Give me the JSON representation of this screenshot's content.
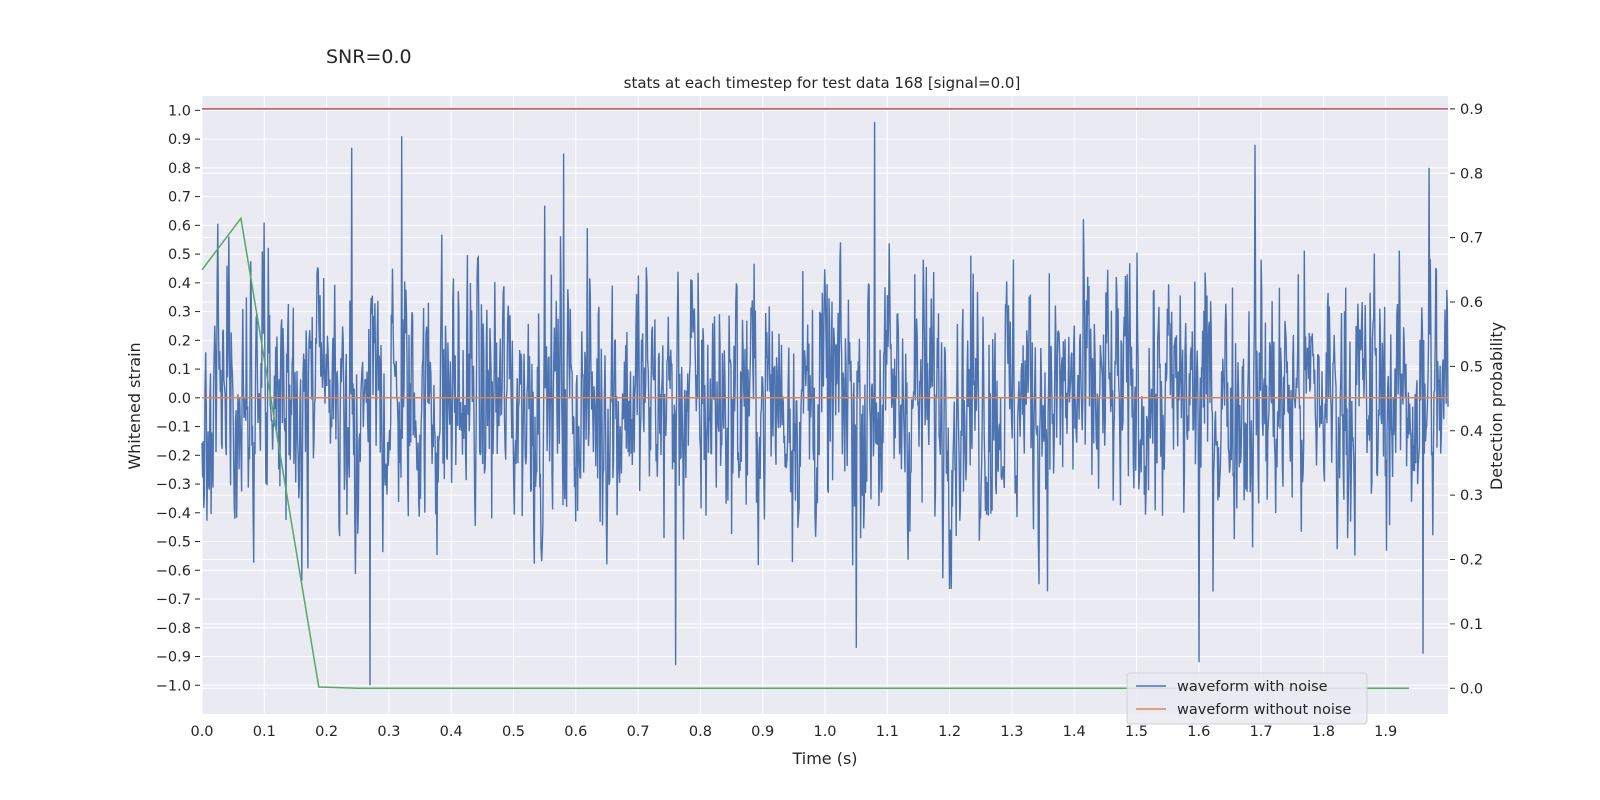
{
  "suptitle": "SNR=0.0",
  "chart_data": {
    "type": "line",
    "title": "stats at each timestep for test data 168 [signal=0.0]",
    "xlabel": "Time (s)",
    "ylabel": "Whitened strain",
    "ylabel_right": "Detection probability",
    "xlim": [
      0.0,
      2.0
    ],
    "ylim": [
      -1.1,
      1.05
    ],
    "ylim_right": [
      -0.04,
      0.92
    ],
    "x_ticks": [
      "0.0",
      "0.1",
      "0.2",
      "0.3",
      "0.4",
      "0.5",
      "0.6",
      "0.7",
      "0.8",
      "0.9",
      "1.0",
      "1.1",
      "1.2",
      "1.3",
      "1.4",
      "1.5",
      "1.6",
      "1.7",
      "1.8",
      "1.9"
    ],
    "y_ticks": [
      "1.0",
      "0.9",
      "0.8",
      "0.7",
      "0.6",
      "0.5",
      "0.4",
      "0.3",
      "0.2",
      "0.1",
      "0.0",
      "-0.1",
      "-0.2",
      "-0.3",
      "-0.4",
      "-0.5",
      "-0.6",
      "-0.7",
      "-0.8",
      "-0.9",
      "-1.0"
    ],
    "y_ticks_right": [
      "0.9",
      "0.8",
      "0.7",
      "0.6",
      "0.5",
      "0.4",
      "0.3",
      "0.2",
      "0.1",
      "0.0"
    ],
    "grid": true,
    "legend_position": "bottom-right",
    "series": [
      {
        "name": "waveform with noise",
        "color": "#4c72b0",
        "axis": "left",
        "sample_count": 2048,
        "envelope": {
          "typical": 0.35,
          "peaks": [
            [
              0.04,
              0.46
            ],
            [
              0.1,
              0.61
            ],
            [
              0.24,
              0.87
            ],
            [
              0.27,
              -1.0
            ],
            [
              0.32,
              0.91
            ],
            [
              0.58,
              0.85
            ],
            [
              0.76,
              -0.93
            ],
            [
              1.08,
              0.96
            ],
            [
              1.05,
              -0.87
            ],
            [
              1.6,
              -0.92
            ],
            [
              1.69,
              0.88
            ],
            [
              1.96,
              -0.89
            ],
            [
              1.97,
              0.8
            ]
          ]
        }
      },
      {
        "name": "waveform without noise",
        "color": "#dd8452",
        "axis": "left",
        "x": [
          0.0,
          2.0
        ],
        "y": [
          0.0,
          0.0
        ]
      },
      {
        "name": "detection probability",
        "color": "#55a868",
        "axis": "right",
        "x": [
          0.0,
          0.0625,
          0.1875,
          0.25,
          1.9375
        ],
        "y": [
          0.65,
          0.73,
          0.002,
          0.0,
          0.0
        ]
      },
      {
        "name": "threshold",
        "color": "#c44e52",
        "axis": "right",
        "x": [
          0.0,
          2.0
        ],
        "y": [
          0.9,
          0.9
        ]
      }
    ]
  }
}
